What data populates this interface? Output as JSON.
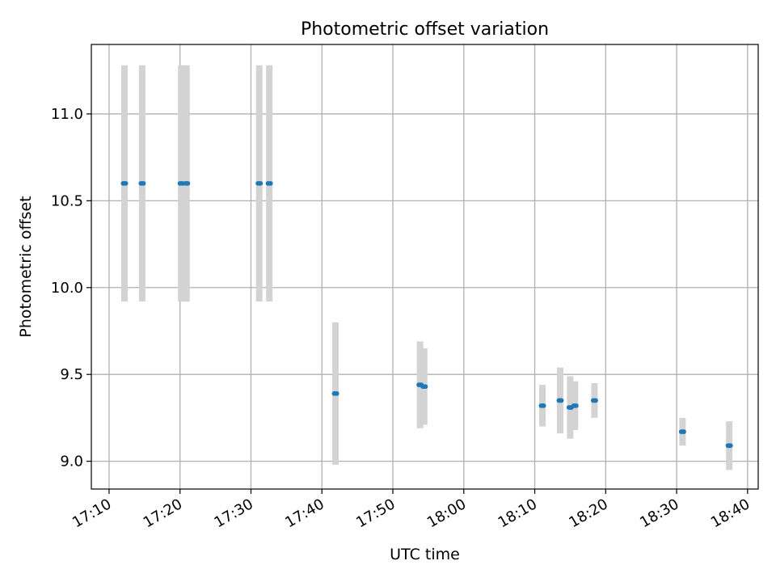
{
  "chart_data": {
    "type": "scatter",
    "title": "Photometric offset variation",
    "xlabel": "UTC time",
    "ylabel": "Photometric offset",
    "grid": true,
    "x_axis": {
      "unit": "HH:MM",
      "range": [
        "17:07:30",
        "18:41:30"
      ],
      "ticks": [
        "17:10",
        "17:20",
        "17:30",
        "17:40",
        "17:50",
        "18:00",
        "18:10",
        "18:20",
        "18:30",
        "18:40"
      ],
      "tick_label_rotation": "slanted"
    },
    "y_axis": {
      "range": [
        8.84,
        11.4
      ],
      "ticks": [
        9.0,
        9.5,
        10.0,
        10.5,
        11.0
      ],
      "tick_labels": [
        "9.0",
        "9.5",
        "10.0",
        "10.5",
        "11.0"
      ]
    },
    "colors": {
      "points": "#1f77b4",
      "error_bars": "#d3d3d3",
      "grid": "#b0b0b0",
      "axes": "#000000"
    },
    "series": [
      {
        "points": [
          {
            "time": "17:12:10",
            "y": 10.6,
            "err": 0.68
          },
          {
            "time": "17:14:40",
            "y": 10.6,
            "err": 0.68
          },
          {
            "time": "17:20:10",
            "y": 10.6,
            "err": 0.68
          },
          {
            "time": "17:20:55",
            "y": 10.6,
            "err": 0.68
          },
          {
            "time": "17:31:10",
            "y": 10.6,
            "err": 0.68
          },
          {
            "time": "17:32:35",
            "y": 10.6,
            "err": 0.68
          },
          {
            "time": "17:41:55",
            "y": 9.39,
            "err": 0.41
          },
          {
            "time": "17:53:50",
            "y": 9.44,
            "err": 0.25
          },
          {
            "time": "17:54:25",
            "y": 9.43,
            "err": 0.22
          },
          {
            "time": "18:11:05",
            "y": 9.32,
            "err": 0.12
          },
          {
            "time": "18:13:35",
            "y": 9.35,
            "err": 0.19
          },
          {
            "time": "18:15:00",
            "y": 9.31,
            "err": 0.18
          },
          {
            "time": "18:15:40",
            "y": 9.32,
            "err": 0.14
          },
          {
            "time": "18:18:25",
            "y": 9.35,
            "err": 0.1
          },
          {
            "time": "18:30:50",
            "y": 9.17,
            "err": 0.08
          },
          {
            "time": "18:37:25",
            "y": 9.09,
            "err": 0.14
          }
        ]
      }
    ]
  }
}
